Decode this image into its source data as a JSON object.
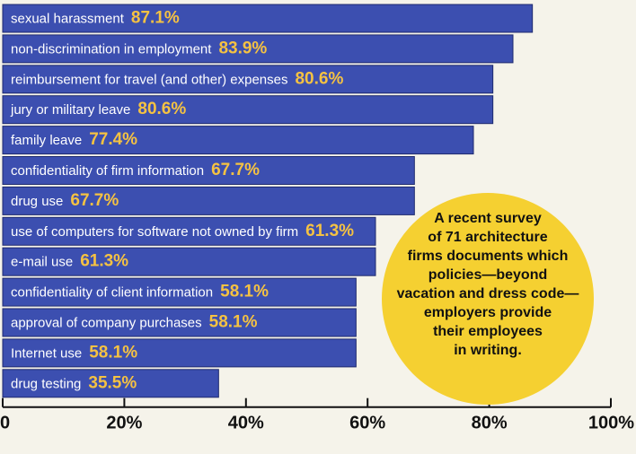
{
  "chart_data": {
    "type": "bar",
    "orientation": "horizontal",
    "categories": [
      "sexual harassment",
      "non-discrimination in employment",
      "reimbursement for travel (and other) expenses",
      "jury or military leave",
      "family leave",
      "confidentiality of firm information",
      "drug use",
      "use of computers for software not owned by firm",
      "e-mail use",
      "confidentiality of client information",
      "approval of company purchases",
      "Internet use",
      "drug testing"
    ],
    "values": [
      87.1,
      83.9,
      80.6,
      80.6,
      77.4,
      67.7,
      67.7,
      61.3,
      61.3,
      58.1,
      58.1,
      58.1,
      35.5
    ],
    "value_labels": [
      "87.1%",
      "83.9%",
      "80.6%",
      "80.6%",
      "77.4%",
      "67.7%",
      "67.7%",
      "61.3%",
      "61.3%",
      "58.1%",
      "58.1%",
      "58.1%",
      "35.5%"
    ],
    "xlim": [
      0,
      100
    ],
    "x_ticks": [
      0,
      20,
      40,
      60,
      80,
      100
    ],
    "x_tick_labels": [
      "0",
      "20%",
      "40%",
      "60%",
      "80%",
      "100%"
    ],
    "grid": false,
    "bar_color": "#3c4fb0",
    "value_color": "#f5c242",
    "annotation": {
      "lines": [
        "A recent survey",
        "of 71 architecture",
        "firms documents which",
        "policies—beyond",
        "vacation and dress code—",
        "employers provide",
        "their employees",
        "in writing."
      ],
      "color": "#f5d031"
    }
  }
}
